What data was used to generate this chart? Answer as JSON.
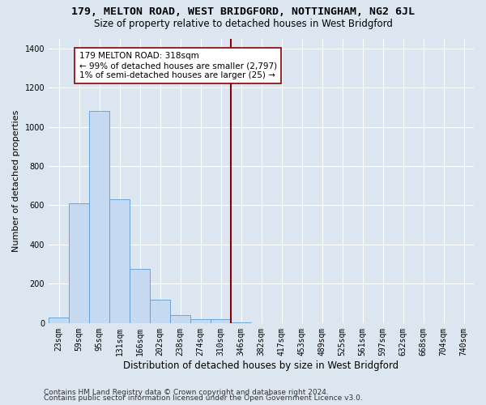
{
  "title": "179, MELTON ROAD, WEST BRIDGFORD, NOTTINGHAM, NG2 6JL",
  "subtitle": "Size of property relative to detached houses in West Bridgford",
  "xlabel": "Distribution of detached houses by size in West Bridgford",
  "ylabel": "Number of detached properties",
  "footer_line1": "Contains HM Land Registry data © Crown copyright and database right 2024.",
  "footer_line2": "Contains public sector information licensed under the Open Government Licence v3.0.",
  "bin_labels": [
    "23sqm",
    "59sqm",
    "95sqm",
    "131sqm",
    "166sqm",
    "202sqm",
    "238sqm",
    "274sqm",
    "310sqm",
    "346sqm",
    "382sqm",
    "417sqm",
    "453sqm",
    "489sqm",
    "525sqm",
    "561sqm",
    "597sqm",
    "632sqm",
    "668sqm",
    "704sqm",
    "740sqm"
  ],
  "bar_heights": [
    30,
    610,
    1080,
    630,
    275,
    120,
    40,
    20,
    20,
    5,
    0,
    0,
    0,
    0,
    0,
    0,
    0,
    0,
    0,
    0,
    0
  ],
  "bar_color": "#c5d9f0",
  "bar_edge_color": "#5b9bd5",
  "vline_index": 8.5,
  "vline_color": "#8B0000",
  "annotation_text": "179 MELTON ROAD: 318sqm\n← 99% of detached houses are smaller (2,797)\n1% of semi-detached houses are larger (25) →",
  "annotation_box_color": "white",
  "annotation_box_edge": "#8B0000",
  "ylim": [
    0,
    1450
  ],
  "yticks": [
    0,
    200,
    400,
    600,
    800,
    1000,
    1200,
    1400
  ],
  "bg_color": "#dce6f0",
  "plot_bg_color": "#dce6f0",
  "grid_color": "white",
  "title_fontsize": 9.5,
  "subtitle_fontsize": 8.5,
  "xlabel_fontsize": 8.5,
  "ylabel_fontsize": 8,
  "tick_fontsize": 7,
  "annotation_fontsize": 7.5,
  "footer_fontsize": 6.5
}
